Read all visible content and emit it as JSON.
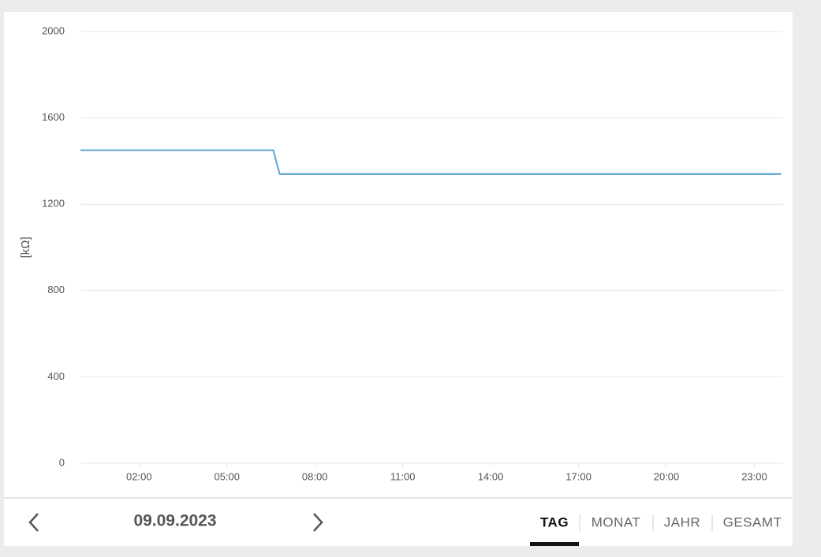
{
  "chart_data": {
    "type": "line",
    "y_label": "[kΩ]",
    "x": [
      "00:00",
      "06:35",
      "06:42",
      "06:48",
      "23:55"
    ],
    "xlim": [
      "00:00",
      "23:59"
    ],
    "xticks": [
      "02:00",
      "05:00",
      "08:00",
      "11:00",
      "14:00",
      "17:00",
      "20:00",
      "23:00"
    ],
    "series": [
      {
        "color": "#6aaad4",
        "values": [
          1450,
          1450,
          1390,
          1340,
          1340
        ]
      }
    ],
    "ylim": [
      0,
      2000
    ],
    "yticks": [
      0,
      400,
      800,
      1200,
      1600,
      2000
    ],
    "grid": true
  },
  "nav": {
    "date": "09.09.2023",
    "tabs": [
      "TAG",
      "MONAT",
      "JAHR",
      "GESAMT"
    ],
    "active_tab": 0
  }
}
